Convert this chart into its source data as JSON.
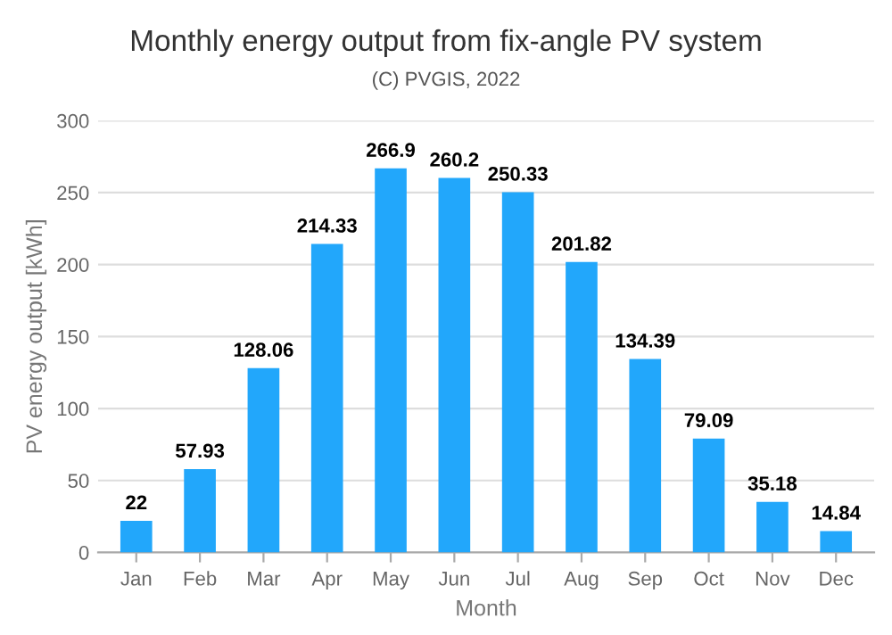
{
  "chart_data": {
    "type": "bar",
    "title": "Monthly energy output from fix-angle PV system",
    "subtitle": "(C) PVGIS, 2022",
    "xlabel": "Month",
    "ylabel": "PV energy output [kWh]",
    "categories": [
      "Jan",
      "Feb",
      "Mar",
      "Apr",
      "May",
      "Jun",
      "Jul",
      "Aug",
      "Sep",
      "Oct",
      "Nov",
      "Dec"
    ],
    "values": [
      22,
      57.93,
      128.06,
      214.33,
      266.9,
      260.2,
      250.33,
      201.82,
      134.39,
      79.09,
      35.18,
      14.84
    ],
    "color": "#22a7fb",
    "ylim": [
      0,
      300
    ],
    "yticks": [
      0,
      50,
      100,
      150,
      200,
      250,
      300
    ],
    "grid": "y",
    "data_labels": true
  }
}
